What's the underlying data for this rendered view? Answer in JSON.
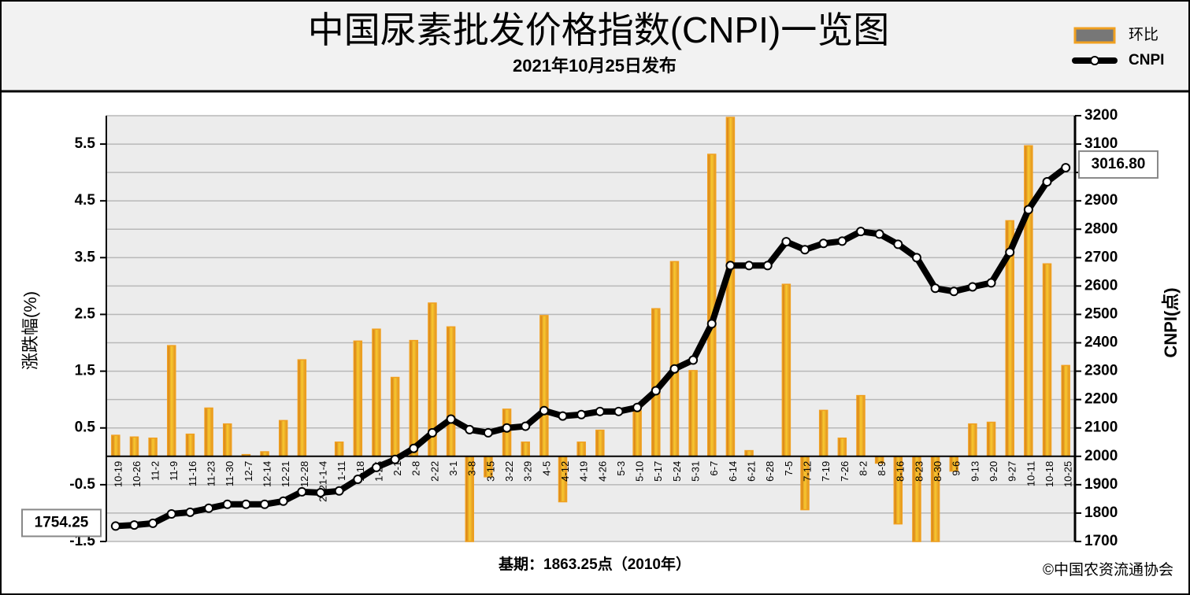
{
  "chart_data": {
    "type": "bar+line",
    "title": "中国尿素批发价格指数(CNPI)一览图",
    "subtitle": "2021年10月25日发布",
    "ylabel": "涨跌幅(%)",
    "y2label": "CNPI(点)",
    "footnote": "基期：1863.25点（2010年）",
    "source": "©中国农资流通协会",
    "categories": [
      "10-19",
      "10-26",
      "11-2",
      "11-9",
      "11-16",
      "11-23",
      "11-30",
      "12-7",
      "12-14",
      "12-21",
      "12-28",
      "2021-1-4",
      "1-11",
      "1-18",
      "1-25",
      "2-1",
      "2-8",
      "2-22",
      "3-1",
      "3-8",
      "3-15",
      "3-22",
      "3-29",
      "4-5",
      "4-12",
      "4-19",
      "4-26",
      "5-3",
      "5-10",
      "5-17",
      "5-24",
      "5-31",
      "6-7",
      "6-14",
      "6-21",
      "6-28",
      "7-5",
      "7-12",
      "7-19",
      "7-26",
      "8-2",
      "8-9",
      "8-16",
      "8-23",
      "8-30",
      "9-6",
      "9-13",
      "9-20",
      "9-27",
      "10-11",
      "10-18",
      "10-25"
    ],
    "series": [
      {
        "name": "环比",
        "type": "bar",
        "color": "#f0a020",
        "values": [
          0.37,
          0.34,
          0.32,
          1.95,
          0.39,
          0.85,
          0.57,
          0.03,
          0.08,
          0.63,
          1.7,
          0,
          0.25,
          2.03,
          2.24,
          1.39,
          2.04,
          2.7,
          2.28,
          -1.5,
          -0.36,
          0.83,
          0.25,
          2.48,
          -0.8,
          0.25,
          0.46,
          0,
          0.8,
          2.6,
          3.43,
          1.51,
          5.32,
          5.97,
          0.1,
          0,
          3.03,
          -0.94,
          0.81,
          0.32,
          1.07,
          -0.12,
          -1.19,
          -1.5,
          -1.5,
          -0.26,
          0.57,
          0.6,
          4.15,
          5.47,
          3.39,
          1.6
        ]
      },
      {
        "name": "CNPI",
        "type": "line",
        "axis": "y2",
        "color": "#000000",
        "values": [
          1754.25,
          1758,
          1764,
          1797,
          1803,
          1817,
          1831,
          1831,
          1831,
          1842,
          1875,
          1872,
          1878,
          1919,
          1961,
          1989,
          2028,
          2083,
          2131,
          2094,
          2083,
          2100,
          2106,
          2161,
          2142,
          2147,
          2158,
          2158,
          2172,
          2231,
          2308,
          2339,
          2467,
          2672,
          2672,
          2672,
          2756,
          2728,
          2750,
          2758,
          2792,
          2783,
          2747,
          2700,
          2592,
          2581,
          2597,
          2611,
          2719,
          2869,
          2967,
          3016.8
        ],
        "value_labels": [
          "1754.25",
          null,
          null,
          null,
          null,
          null,
          null,
          null,
          null,
          null,
          null,
          null,
          null,
          null,
          null,
          null,
          null,
          null,
          null,
          null,
          null,
          null,
          null,
          null,
          null,
          null,
          null,
          null,
          null,
          null,
          null,
          null,
          null,
          null,
          null,
          null,
          null,
          null,
          null,
          null,
          null,
          null,
          null,
          null,
          null,
          null,
          null,
          null,
          null,
          null,
          null,
          "3016.80"
        ]
      }
    ],
    "ylim": [
      -1.5,
      6.0
    ],
    "yticks": [
      -1.5,
      -0.5,
      0.5,
      1.5,
      2.5,
      3.5,
      4.5,
      5.5
    ],
    "y2lim": [
      1700,
      3200
    ],
    "y2ticks": [
      1700,
      1800,
      1900,
      2000,
      2100,
      2200,
      2300,
      2400,
      2500,
      2600,
      2700,
      2800,
      2900,
      3000,
      3100,
      3200
    ],
    "grid": true,
    "legend": "top-right"
  }
}
